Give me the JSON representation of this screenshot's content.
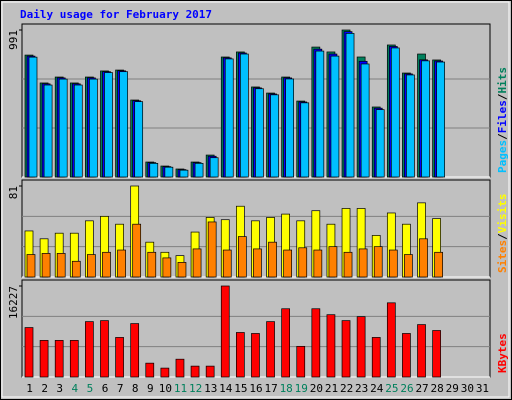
{
  "title": "Daily usage for February 2017",
  "legend_separator": "/",
  "chart_data": [
    {
      "type": "bar",
      "ylim": [
        0,
        991
      ],
      "yticks": [
        991
      ],
      "grid_divisions": 3,
      "series": [
        {
          "name": "Hits",
          "color": "#00805c",
          "values": [
            822,
            634,
            674,
            634,
            674,
            715,
            721,
            519,
            101,
            74,
            54,
            101,
            148,
            809,
            843,
            607,
            566,
            674,
            512,
            876,
            843,
            991,
            809,
            472,
            890,
            701,
            829,
            789,
            null,
            null,
            null
          ]
        },
        {
          "name": "Files",
          "color": "#0000ff",
          "values": [
            815,
            628,
            668,
            628,
            668,
            710,
            716,
            514,
            97,
            70,
            50,
            97,
            140,
            803,
            836,
            601,
            560,
            668,
            506,
            862,
            829,
            980,
            780,
            464,
            880,
            695,
            790,
            782,
            null,
            null,
            null
          ]
        },
        {
          "name": "Pages",
          "color": "#00c0ff",
          "values": [
            808,
            620,
            660,
            620,
            660,
            704,
            710,
            508,
            92,
            66,
            46,
            92,
            130,
            796,
            829,
            595,
            554,
            661,
            500,
            849,
            815,
            968,
            762,
            454,
            870,
            688,
            783,
            775,
            null,
            null,
            null
          ]
        }
      ],
      "legend_order": [
        2,
        1,
        0
      ]
    },
    {
      "type": "bar",
      "ylim": [
        0,
        81
      ],
      "yticks": [
        81
      ],
      "grid_divisions": 3,
      "series": [
        {
          "name": "Visits",
          "color": "#ffff00",
          "values": [
            41,
            34,
            39,
            39,
            50,
            54,
            47,
            81,
            31,
            22,
            19,
            40,
            53,
            51,
            63,
            50,
            53,
            56,
            50,
            59,
            47,
            61,
            61,
            37,
            57,
            47,
            66,
            52,
            null,
            null,
            null
          ]
        },
        {
          "name": "Sites",
          "color": "#ff8000",
          "values": [
            20,
            21,
            21,
            14,
            20,
            22,
            24,
            47,
            22,
            17,
            13,
            25,
            49,
            24,
            36,
            25,
            31,
            24,
            26,
            24,
            27,
            22,
            25,
            27,
            24,
            20,
            34,
            22,
            null,
            null,
            null
          ]
        }
      ],
      "legend_order": [
        1,
        0
      ]
    },
    {
      "type": "bar",
      "ylim": [
        0,
        16227
      ],
      "yticks": [
        16227
      ],
      "grid_divisions": 3,
      "series": [
        {
          "name": "KBytes",
          "color": "#ff0000",
          "values": [
            8819,
            6526,
            6526,
            6526,
            9877,
            10054,
            7055,
            9525,
            2469,
            1587,
            3175,
            1940,
            1940,
            16227,
            7937,
            7761,
            9877,
            12170,
            5468,
            12170,
            11112,
            10054,
            10759,
            7055,
            13228,
            7761,
            9348,
            8290,
            null,
            null,
            null
          ]
        }
      ],
      "legend_order": [
        0
      ],
      "categories": [
        "1",
        "2",
        "3",
        "4",
        "5",
        "6",
        "7",
        "8",
        "9",
        "10",
        "11",
        "12",
        "13",
        "14",
        "15",
        "16",
        "17",
        "18",
        "19",
        "20",
        "21",
        "22",
        "23",
        "24",
        "25",
        "26",
        "27",
        "28",
        "29",
        "30",
        "31"
      ],
      "category_colors": [
        "#000000",
        "#000000",
        "#000000",
        "#00805c",
        "#00805c",
        "#000000",
        "#000000",
        "#000000",
        "#000000",
        "#000000",
        "#00805c",
        "#00805c",
        "#000000",
        "#000000",
        "#000000",
        "#000000",
        "#000000",
        "#00805c",
        "#00805c",
        "#000000",
        "#000000",
        "#000000",
        "#000000",
        "#000000",
        "#00805c",
        "#00805c",
        "#000000",
        "#000000",
        "#000000",
        "#000000",
        "#000000"
      ]
    }
  ]
}
